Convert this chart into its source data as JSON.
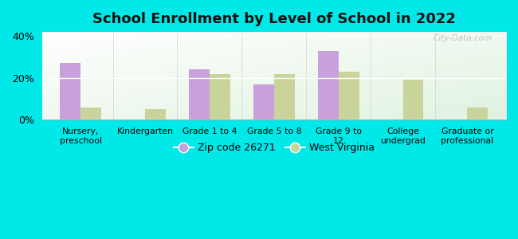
{
  "title": "School Enrollment by Level of School in 2022",
  "categories": [
    "Nursery,\npreschool",
    "Kindergarten",
    "Grade 1 to 4",
    "Grade 5 to 8",
    "Grade 9 to\n12",
    "College\nundergrad",
    "Graduate or\nprofessional"
  ],
  "zip_values": [
    27,
    0,
    24,
    17,
    33,
    0,
    0
  ],
  "wv_values": [
    6,
    5,
    22,
    22,
    23,
    19,
    6
  ],
  "zip_color": "#c9a0dc",
  "wv_color": "#c8d49a",
  "background_color": "#00e8e8",
  "plot_bg_color": "#e8f5e9",
  "ylim": [
    0,
    42
  ],
  "yticks": [
    0,
    20,
    40
  ],
  "ytick_labels": [
    "0%",
    "20%",
    "40%"
  ],
  "bar_width": 0.32,
  "legend_zip": "Zip code 26271",
  "legend_wv": "West Virginia",
  "title_fontsize": 13,
  "watermark": "City-Data.com"
}
